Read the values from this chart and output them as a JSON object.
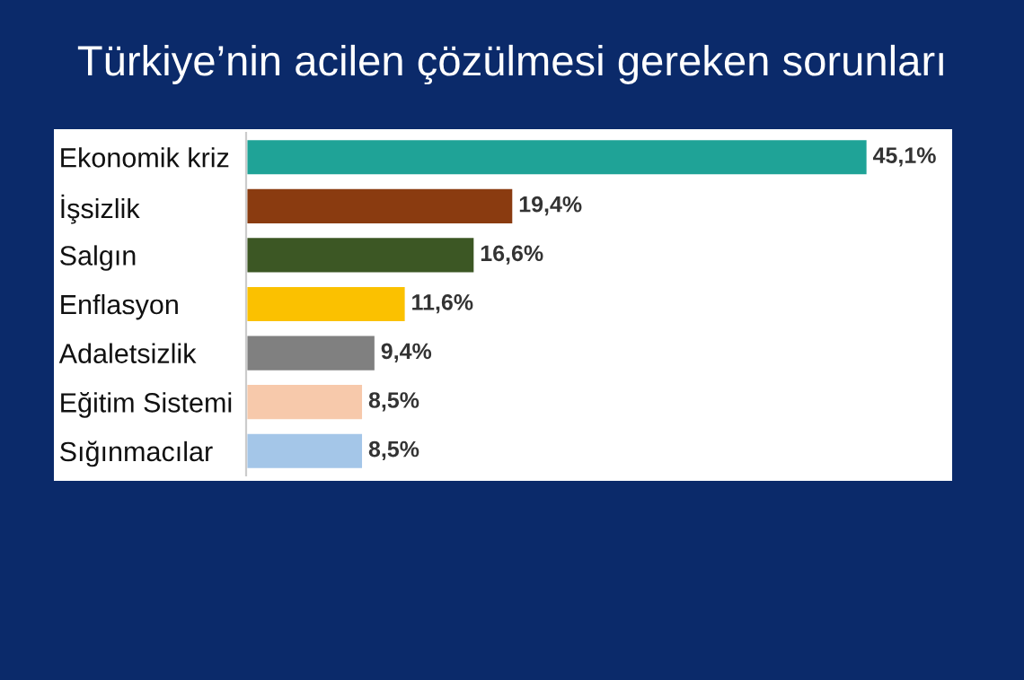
{
  "chart_data": {
    "type": "bar",
    "orientation": "horizontal",
    "title": "Türkiye’nin acilen çözülmesi gereken sorunları",
    "categories": [
      "Ekonomik kriz",
      "İşsizlik",
      "Salgın",
      "Enflasyon",
      "Adaletsizlik",
      "Eğitim Sistemi",
      "Sığınmacılar"
    ],
    "values": [
      45.1,
      19.4,
      16.6,
      11.6,
      9.4,
      8.5,
      8.5
    ],
    "colors": [
      "#1fa397",
      "#8a3b10",
      "#3c5724",
      "#fbc100",
      "#808080",
      "#f7c9ab",
      "#a4c6e8"
    ],
    "value_labels": [
      "45,1%",
      "19,4%",
      "16,6%",
      "11,6%",
      "9,4%",
      "8,5%",
      "8,5%"
    ]
  }
}
